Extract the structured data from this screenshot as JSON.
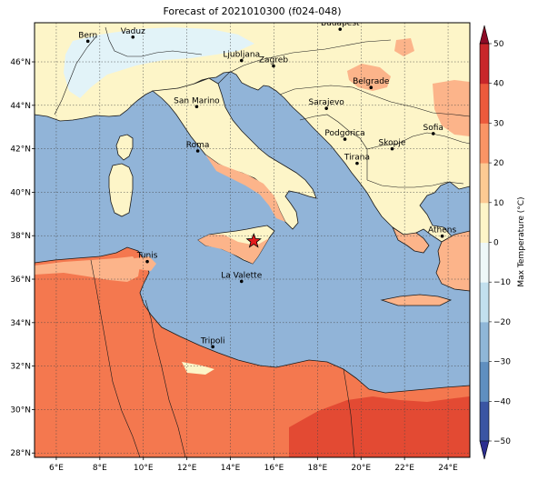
{
  "title": "Forecast of 2021010300 (f024-048)",
  "colors": {
    "sea": "#91b4d8",
    "ocean_border": "#1a1a1a",
    "land_cool": "#fdf5c8",
    "land_warm": "#fcb48a",
    "land_hot": "#f4784f",
    "land_cold": "#e2f3f8",
    "hot_max": "#e34a33"
  },
  "map": {
    "lon_range": [
      5,
      25
    ],
    "lat_range": [
      27.8,
      47.8
    ],
    "lon_ticks": [
      6,
      8,
      10,
      12,
      14,
      16,
      18,
      20,
      22,
      24
    ],
    "lon_tick_labels": [
      "6°E",
      "8°E",
      "10°E",
      "12°E",
      "14°E",
      "16°E",
      "18°E",
      "20°E",
      "22°E",
      "24°E"
    ],
    "lat_ticks": [
      28,
      30,
      32,
      34,
      36,
      38,
      40,
      42,
      44,
      46
    ],
    "lat_tick_labels": [
      "28°N",
      "30°N",
      "32°N",
      "34°N",
      "36°N",
      "38°N",
      "40°N",
      "42°N",
      "44°N",
      "46°N"
    ],
    "grid": true
  },
  "cities": [
    {
      "name": "Bern",
      "lon": 7.45,
      "lat": 46.95
    },
    {
      "name": "Vaduz",
      "lon": 9.52,
      "lat": 47.14
    },
    {
      "name": "Budapest",
      "lon": 19.04,
      "lat": 47.5
    },
    {
      "name": "Ljubljana",
      "lon": 14.51,
      "lat": 46.06
    },
    {
      "name": "Zagreb",
      "lon": 15.98,
      "lat": 45.81
    },
    {
      "name": "Belgrade",
      "lon": 20.46,
      "lat": 44.82
    },
    {
      "name": "San Marino",
      "lon": 12.45,
      "lat": 43.94
    },
    {
      "name": "Sarajevo",
      "lon": 18.41,
      "lat": 43.86
    },
    {
      "name": "Sofia",
      "lon": 23.32,
      "lat": 42.7
    },
    {
      "name": "Roma",
      "lon": 12.5,
      "lat": 41.9
    },
    {
      "name": "Podgorica",
      "lon": 19.26,
      "lat": 42.44
    },
    {
      "name": "Skopje",
      "lon": 21.43,
      "lat": 42.0
    },
    {
      "name": "Tirana",
      "lon": 19.82,
      "lat": 41.33
    },
    {
      "name": "Athens",
      "lon": 23.73,
      "lat": 37.98
    },
    {
      "name": "Tunis",
      "lon": 10.18,
      "lat": 36.81
    },
    {
      "name": "La Valette",
      "lon": 14.51,
      "lat": 35.9
    },
    {
      "name": "Tripoli",
      "lon": 13.19,
      "lat": 32.89
    }
  ],
  "marker": {
    "symbol": "star",
    "lon": 15.07,
    "lat": 37.75,
    "color": "#e31a1c"
  },
  "colorbar": {
    "label": "Max Temperature (°C)",
    "ticks": [
      -50,
      -40,
      -30,
      -20,
      -10,
      0,
      10,
      20,
      30,
      40,
      50
    ],
    "tick_labels": [
      "−50",
      "−40",
      "−30",
      "−20",
      "−10",
      "0",
      "10",
      "20",
      "30",
      "40",
      "50"
    ],
    "colors": [
      "#2c2e8f",
      "#3a55a3",
      "#5f8fc0",
      "#8fb7d8",
      "#c2e0ee",
      "#eef8f8",
      "#fdf5c8",
      "#fcca93",
      "#fa9465",
      "#ec5a3c",
      "#c8262a",
      "#8c0b26"
    ]
  }
}
